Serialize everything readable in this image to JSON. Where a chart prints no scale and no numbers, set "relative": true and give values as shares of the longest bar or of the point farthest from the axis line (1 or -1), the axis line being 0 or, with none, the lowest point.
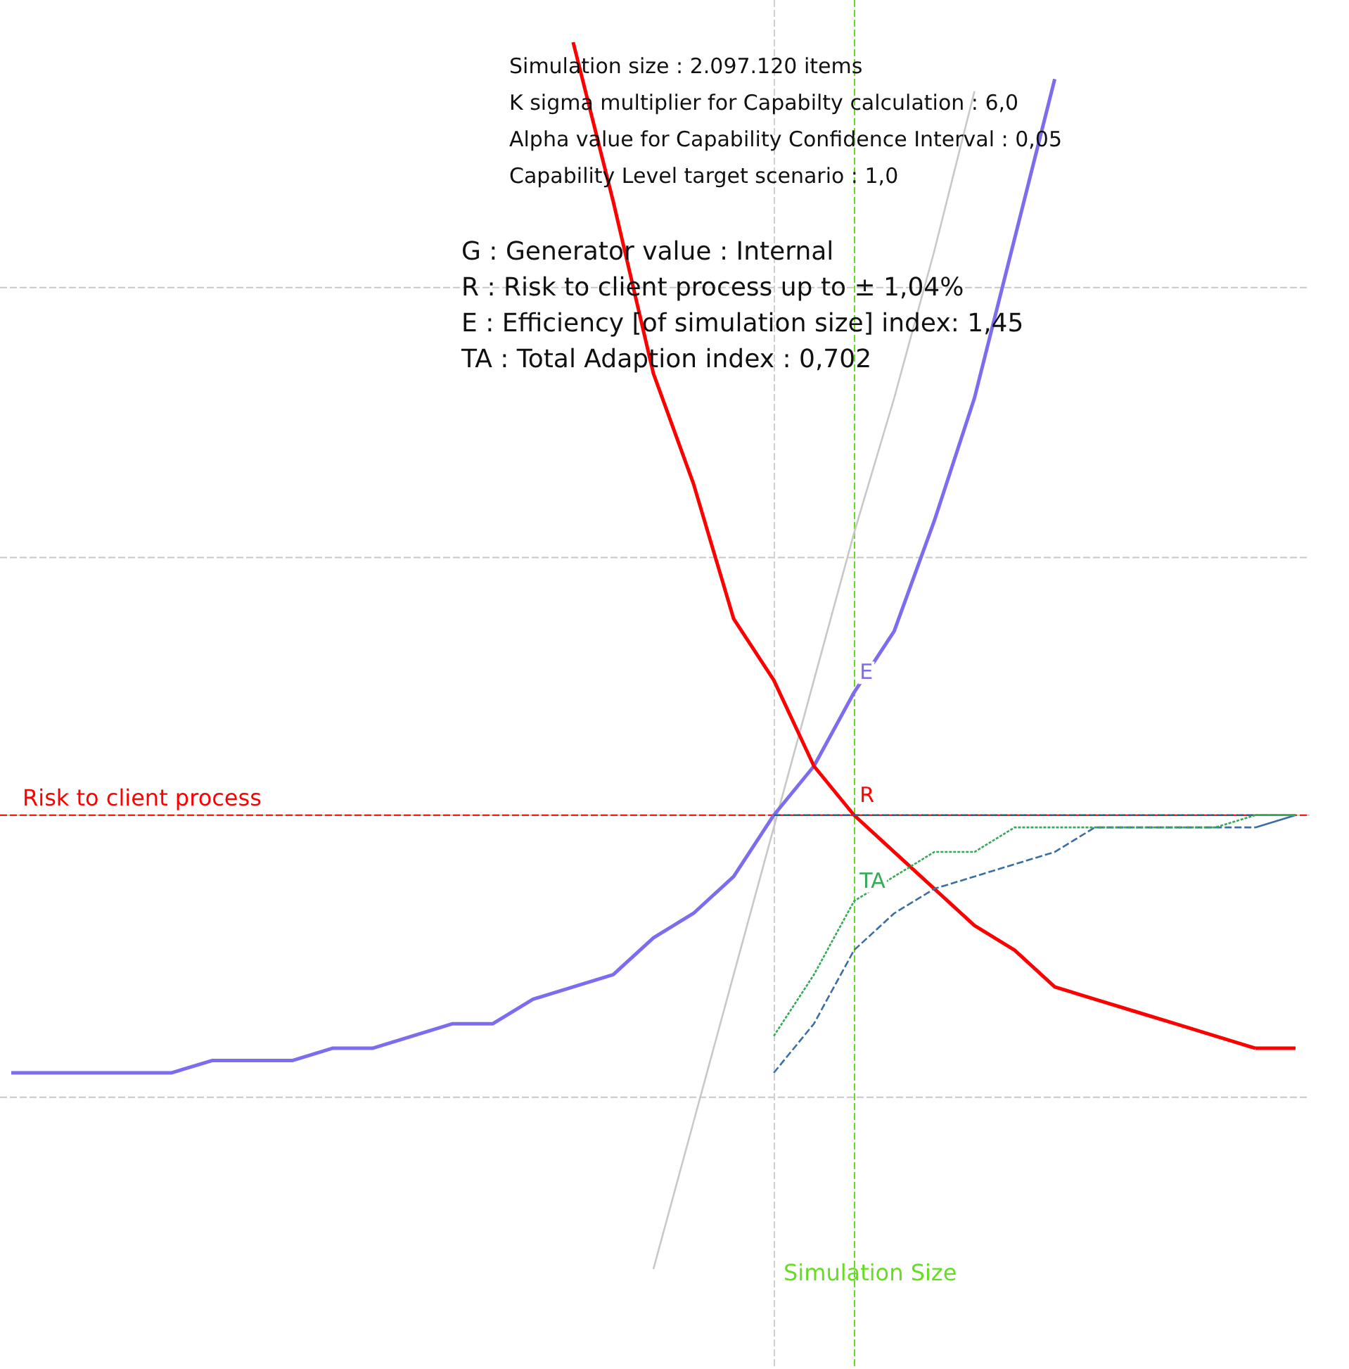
{
  "chart_data": {
    "type": "line",
    "relative": true,
    "legend": false,
    "marker": "none",
    "categories": [
      null,
      null,
      null,
      null,
      null,
      null,
      null,
      null,
      null,
      null,
      null,
      null,
      null,
      null,
      null,
      null,
      null,
      null,
      null,
      null,
      null,
      null,
      null,
      null,
      null,
      null,
      null,
      null,
      null,
      null,
      null,
      null,
      null
    ],
    "annotations": [
      "Simulation size : 2.097.120 items",
      "K sigma multiplier for Capabilty calculation : 6,0",
      "Alpha value for Capability Confidence Interval : 0,05",
      "Capability Level target scenario : 1,0",
      "G : Generator value : Internal",
      "R : Risk to client process up to ± 1,04%",
      "E : Efficiency [of simulation size] index: 1,45",
      "TA : Total Adaption index : 0,702",
      "Simulation Size"
    ],
    "ref_lines": [
      {
        "axis": "y",
        "value": 0.8,
        "color": "#c8c8c8",
        "line_style": "dashed"
      },
      {
        "axis": "y",
        "value": 0.58,
        "color": "#c8c8c8",
        "line_style": "dashed"
      },
      {
        "axis": "y",
        "value": 0.14,
        "color": "#c8c8c8",
        "line_style": "dashed"
      },
      {
        "axis": "y",
        "value": 0.37,
        "color": "#c8c8c8",
        "line_style": "solid"
      },
      {
        "axis": "y",
        "value": 0.37,
        "label": "Risk to client process",
        "color": "#ff0000",
        "line_style": "dashed"
      }
    ],
    "series": [
      {
        "color": "#c8c8c8",
        "line_style": "solid",
        "values": [
          null,
          null,
          null,
          null,
          null,
          null,
          null,
          null,
          null,
          null,
          null,
          null,
          null,
          null,
          null,
          null,
          0,
          0.12,
          0.24,
          0.36,
          0.48,
          0.6,
          0.71,
          0.83,
          0.96,
          null,
          null,
          null,
          null,
          null,
          null,
          null,
          null
        ]
      },
      {
        "name": "E",
        "color": "#7b6cf0",
        "line_style": "solid",
        "values": [
          0.16,
          0.16,
          0.16,
          0.16,
          0.16,
          0.17,
          0.17,
          0.17,
          0.18,
          0.18,
          0.19,
          0.2,
          0.2,
          0.22,
          0.23,
          0.24,
          0.27,
          0.29,
          0.32,
          0.37,
          0.41,
          0.47,
          0.52,
          0.61,
          0.71,
          0.84,
          0.97,
          null,
          null,
          null,
          null,
          null,
          null
        ]
      },
      {
        "name": "R",
        "color": "#ff0000",
        "line_style": "solid",
        "values": [
          null,
          null,
          null,
          null,
          null,
          null,
          null,
          null,
          null,
          null,
          null,
          null,
          null,
          null,
          1,
          0.87,
          0.73,
          0.64,
          0.53,
          0.48,
          0.41,
          0.37,
          0.34,
          0.31,
          0.28,
          0.26,
          0.23,
          0.22,
          0.21,
          0.2,
          0.19,
          0.18,
          0.18
        ]
      },
      {
        "color": "#2f5f8f",
        "line_style": "dashed",
        "values": [
          null,
          null,
          null,
          null,
          null,
          null,
          null,
          null,
          null,
          null,
          null,
          null,
          null,
          null,
          null,
          null,
          null,
          null,
          null,
          0.37,
          0.37,
          0.37,
          0.37,
          0.37,
          0.37,
          0.37,
          0.37,
          0.37,
          0.37,
          0.37,
          0.37,
          0.37,
          0.37
        ]
      },
      {
        "color": "#3a6ea5",
        "line_style": "dashed",
        "values": [
          null,
          null,
          null,
          null,
          null,
          null,
          null,
          null,
          null,
          null,
          null,
          null,
          null,
          null,
          null,
          null,
          null,
          null,
          null,
          0.16,
          0.2,
          0.26,
          0.29,
          0.31,
          0.32,
          0.33,
          0.34,
          0.36,
          0.36,
          0.36,
          0.36,
          0.36,
          0.37
        ]
      },
      {
        "name": "TA",
        "color": "#33aa55",
        "line_style": "dotted",
        "values": [
          null,
          null,
          null,
          null,
          null,
          null,
          null,
          null,
          null,
          null,
          null,
          null,
          null,
          null,
          null,
          null,
          null,
          null,
          null,
          0.19,
          0.24,
          0.3,
          0.32,
          0.34,
          0.34,
          0.36,
          0.36,
          0.36,
          0.36,
          0.36,
          0.36,
          0.37,
          0.37
        ]
      }
    ]
  }
}
